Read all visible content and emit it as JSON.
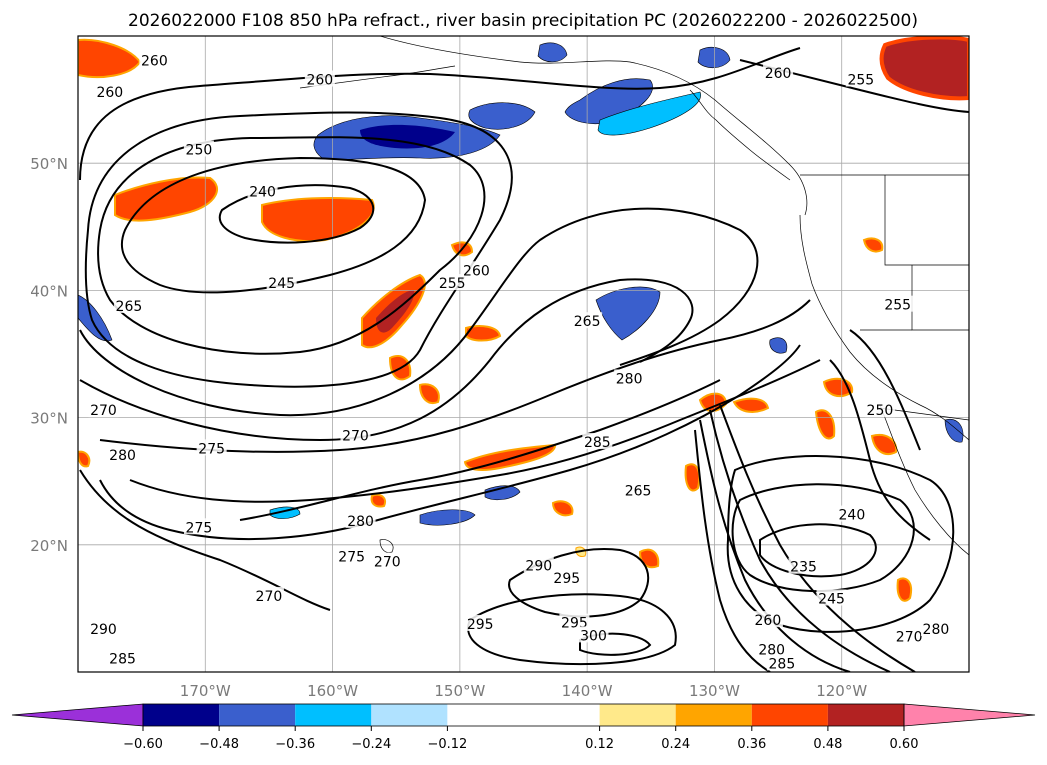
{
  "chart_data": {
    "type": "contour-map",
    "title": "2026022000 F108 850 hPa refract., river basin precipitation PC (2026022200 - 2026022500)",
    "projection": "PlateCarree",
    "extent": {
      "lon": [
        -180,
        -110
      ],
      "lat": [
        10,
        60
      ]
    },
    "x_ticks": [
      {
        "lon": -170,
        "label": "170°W"
      },
      {
        "lon": -160,
        "label": "160°W"
      },
      {
        "lon": -150,
        "label": "150°W"
      },
      {
        "lon": -140,
        "label": "140°W"
      },
      {
        "lon": -130,
        "label": "130°W"
      },
      {
        "lon": -120,
        "label": "120°W"
      }
    ],
    "y_ticks": [
      {
        "lat": 20,
        "label": "20°N"
      },
      {
        "lat": 30,
        "label": "30°N"
      },
      {
        "lat": 40,
        "label": "40°N"
      },
      {
        "lat": 50,
        "label": "50°N"
      }
    ],
    "grid": true,
    "contour_field": "850 hPa refractivity",
    "contour_labels": [
      {
        "value": "260",
        "lon": -174,
        "lat": 58
      },
      {
        "value": "260",
        "lon": -177.5,
        "lat": 55.5
      },
      {
        "value": "260",
        "lon": -161,
        "lat": 56.5
      },
      {
        "value": "260",
        "lon": -125,
        "lat": 57
      },
      {
        "value": "255",
        "lon": -118.5,
        "lat": 56.5
      },
      {
        "value": "250",
        "lon": -170.5,
        "lat": 51
      },
      {
        "value": "240",
        "lon": -165.5,
        "lat": 47.7
      },
      {
        "value": "245",
        "lon": -164,
        "lat": 40.5
      },
      {
        "value": "255",
        "lon": -150.6,
        "lat": 40.5
      },
      {
        "value": "260",
        "lon": -148.7,
        "lat": 41.5
      },
      {
        "value": "265",
        "lon": -140,
        "lat": 37.5
      },
      {
        "value": "265",
        "lon": -176,
        "lat": 38.7
      },
      {
        "value": "255",
        "lon": -115.6,
        "lat": 38.8
      },
      {
        "value": "280",
        "lon": -136.7,
        "lat": 33
      },
      {
        "value": "250",
        "lon": -117,
        "lat": 30.5
      },
      {
        "value": "270",
        "lon": -178,
        "lat": 30.5
      },
      {
        "value": "270",
        "lon": -158.2,
        "lat": 28.5
      },
      {
        "value": "275",
        "lon": -169.5,
        "lat": 27.5
      },
      {
        "value": "280",
        "lon": -176.5,
        "lat": 27
      },
      {
        "value": "285",
        "lon": -139.2,
        "lat": 28
      },
      {
        "value": "265",
        "lon": -136,
        "lat": 24.2
      },
      {
        "value": "275",
        "lon": -170.5,
        "lat": 21.3
      },
      {
        "value": "280",
        "lon": -157.8,
        "lat": 21.8
      },
      {
        "value": "275",
        "lon": -158.5,
        "lat": 19
      },
      {
        "value": "270",
        "lon": -155.7,
        "lat": 18.6
      },
      {
        "value": "240",
        "lon": -119.2,
        "lat": 22.3
      },
      {
        "value": "290",
        "lon": -143.8,
        "lat": 18.3
      },
      {
        "value": "295",
        "lon": -141.6,
        "lat": 17.3
      },
      {
        "value": "235",
        "lon": -123,
        "lat": 18.2
      },
      {
        "value": "270",
        "lon": -165,
        "lat": 15.9
      },
      {
        "value": "245",
        "lon": -120.8,
        "lat": 15.7
      },
      {
        "value": "260",
        "lon": -125.8,
        "lat": 14
      },
      {
        "value": "295",
        "lon": -148.4,
        "lat": 13.7
      },
      {
        "value": "295",
        "lon": -141,
        "lat": 13.8
      },
      {
        "value": "300",
        "lon": -139.5,
        "lat": 12.8
      },
      {
        "value": "270",
        "lon": -114.7,
        "lat": 12.7
      },
      {
        "value": "280",
        "lon": -112.6,
        "lat": 13.3
      },
      {
        "value": "290",
        "lon": -178,
        "lat": 13.3
      },
      {
        "value": "285",
        "lon": -176.5,
        "lat": 11
      },
      {
        "value": "280",
        "lon": -125.5,
        "lat": 11.7
      },
      {
        "value": "285",
        "lon": -124.7,
        "lat": 10.6
      }
    ],
    "colorbar": {
      "field": "river basin precipitation PC",
      "ticks": [
        "−0.60",
        "−0.48",
        "−0.36",
        "−0.24",
        "−0.12",
        "0.12",
        "0.24",
        "0.36",
        "0.48",
        "0.60"
      ],
      "bounds": [
        -0.6,
        -0.48,
        -0.36,
        -0.24,
        -0.12,
        0.12,
        0.24,
        0.36,
        0.48,
        0.6
      ],
      "colors": [
        "#9b30d9",
        "#00008b",
        "#3a5fcd",
        "#00bfff",
        "#b0e2ff",
        "#ffffff",
        "#ffe98a",
        "#ffa500",
        "#ff4500",
        "#b22222",
        "#ff82ab"
      ],
      "extend": "both"
    }
  }
}
